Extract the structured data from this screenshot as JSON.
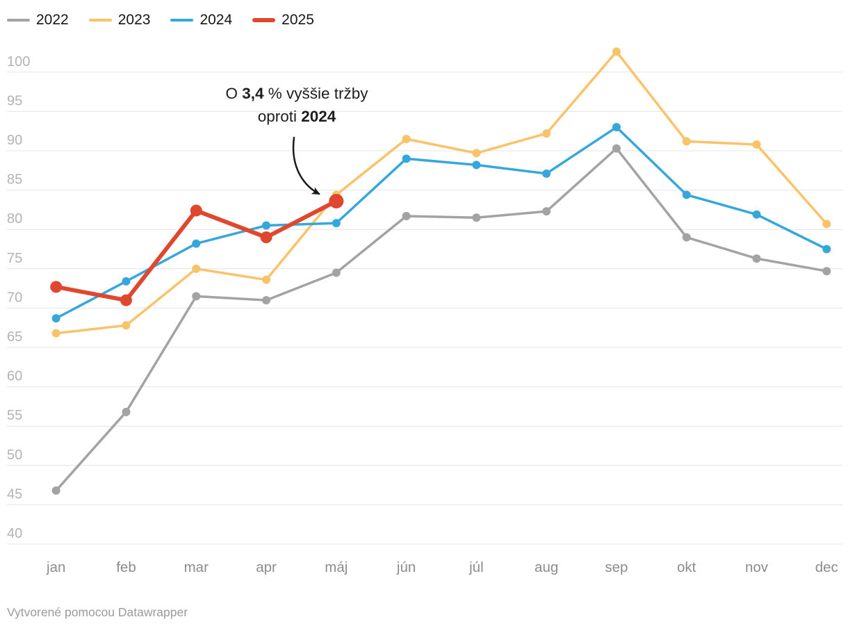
{
  "legend": {
    "items": [
      {
        "label": "2022",
        "color": "#a3a3a3"
      },
      {
        "label": "2023",
        "color": "#f9c369"
      },
      {
        "label": "2024",
        "color": "#36a7dc"
      },
      {
        "label": "2025",
        "color": "#e0472f"
      }
    ]
  },
  "annotation": {
    "line1_prefix": "O ",
    "line1_bold": "3,4",
    "line1_suffix": " % vyššie tržby",
    "line2_prefix": "oproti ",
    "line2_bold": "2024"
  },
  "footer": {
    "prefix": "Vytvorené pomocou ",
    "link": "Datawrapper"
  },
  "chart_data": {
    "type": "line",
    "title": "",
    "xlabel": "",
    "ylabel": "",
    "categories": [
      "jan",
      "feb",
      "mar",
      "apr",
      "máj",
      "jún",
      "júl",
      "aug",
      "sep",
      "okt",
      "nov",
      "dec"
    ],
    "yticks": [
      40,
      45,
      50,
      55,
      60,
      65,
      70,
      75,
      80,
      85,
      90,
      95,
      100
    ],
    "ylim": [
      40,
      103
    ],
    "grid": "horizontal",
    "legend_position": "top-left",
    "colors": {
      "grid": "#e4e4e4",
      "y_axis_label": "#b3b3b3",
      "x_axis_label": "#8c8c8c",
      "annotation_text": "#1d1d1d"
    },
    "series": [
      {
        "name": "2022",
        "color": "#a3a3a3",
        "values": [
          46.8,
          56.8,
          71.5,
          71.0,
          74.5,
          81.7,
          81.5,
          82.3,
          90.3,
          79.0,
          76.3,
          74.7
        ]
      },
      {
        "name": "2023",
        "color": "#f9c369",
        "values": [
          66.8,
          67.8,
          75.0,
          73.6,
          84.4,
          91.5,
          89.7,
          92.2,
          102.6,
          91.2,
          90.8,
          80.7
        ]
      },
      {
        "name": "2024",
        "color": "#36a7dc",
        "values": [
          68.7,
          73.4,
          78.2,
          80.5,
          80.8,
          89.0,
          88.2,
          87.1,
          93.0,
          84.4,
          81.9,
          77.5
        ]
      },
      {
        "name": "2025",
        "color": "#e0472f",
        "emphasized": true,
        "values": [
          72.7,
          71.0,
          82.4,
          79.0,
          83.6
        ]
      }
    ],
    "annotation_note": "Arrow points from the note text to the May 2025 data point"
  }
}
